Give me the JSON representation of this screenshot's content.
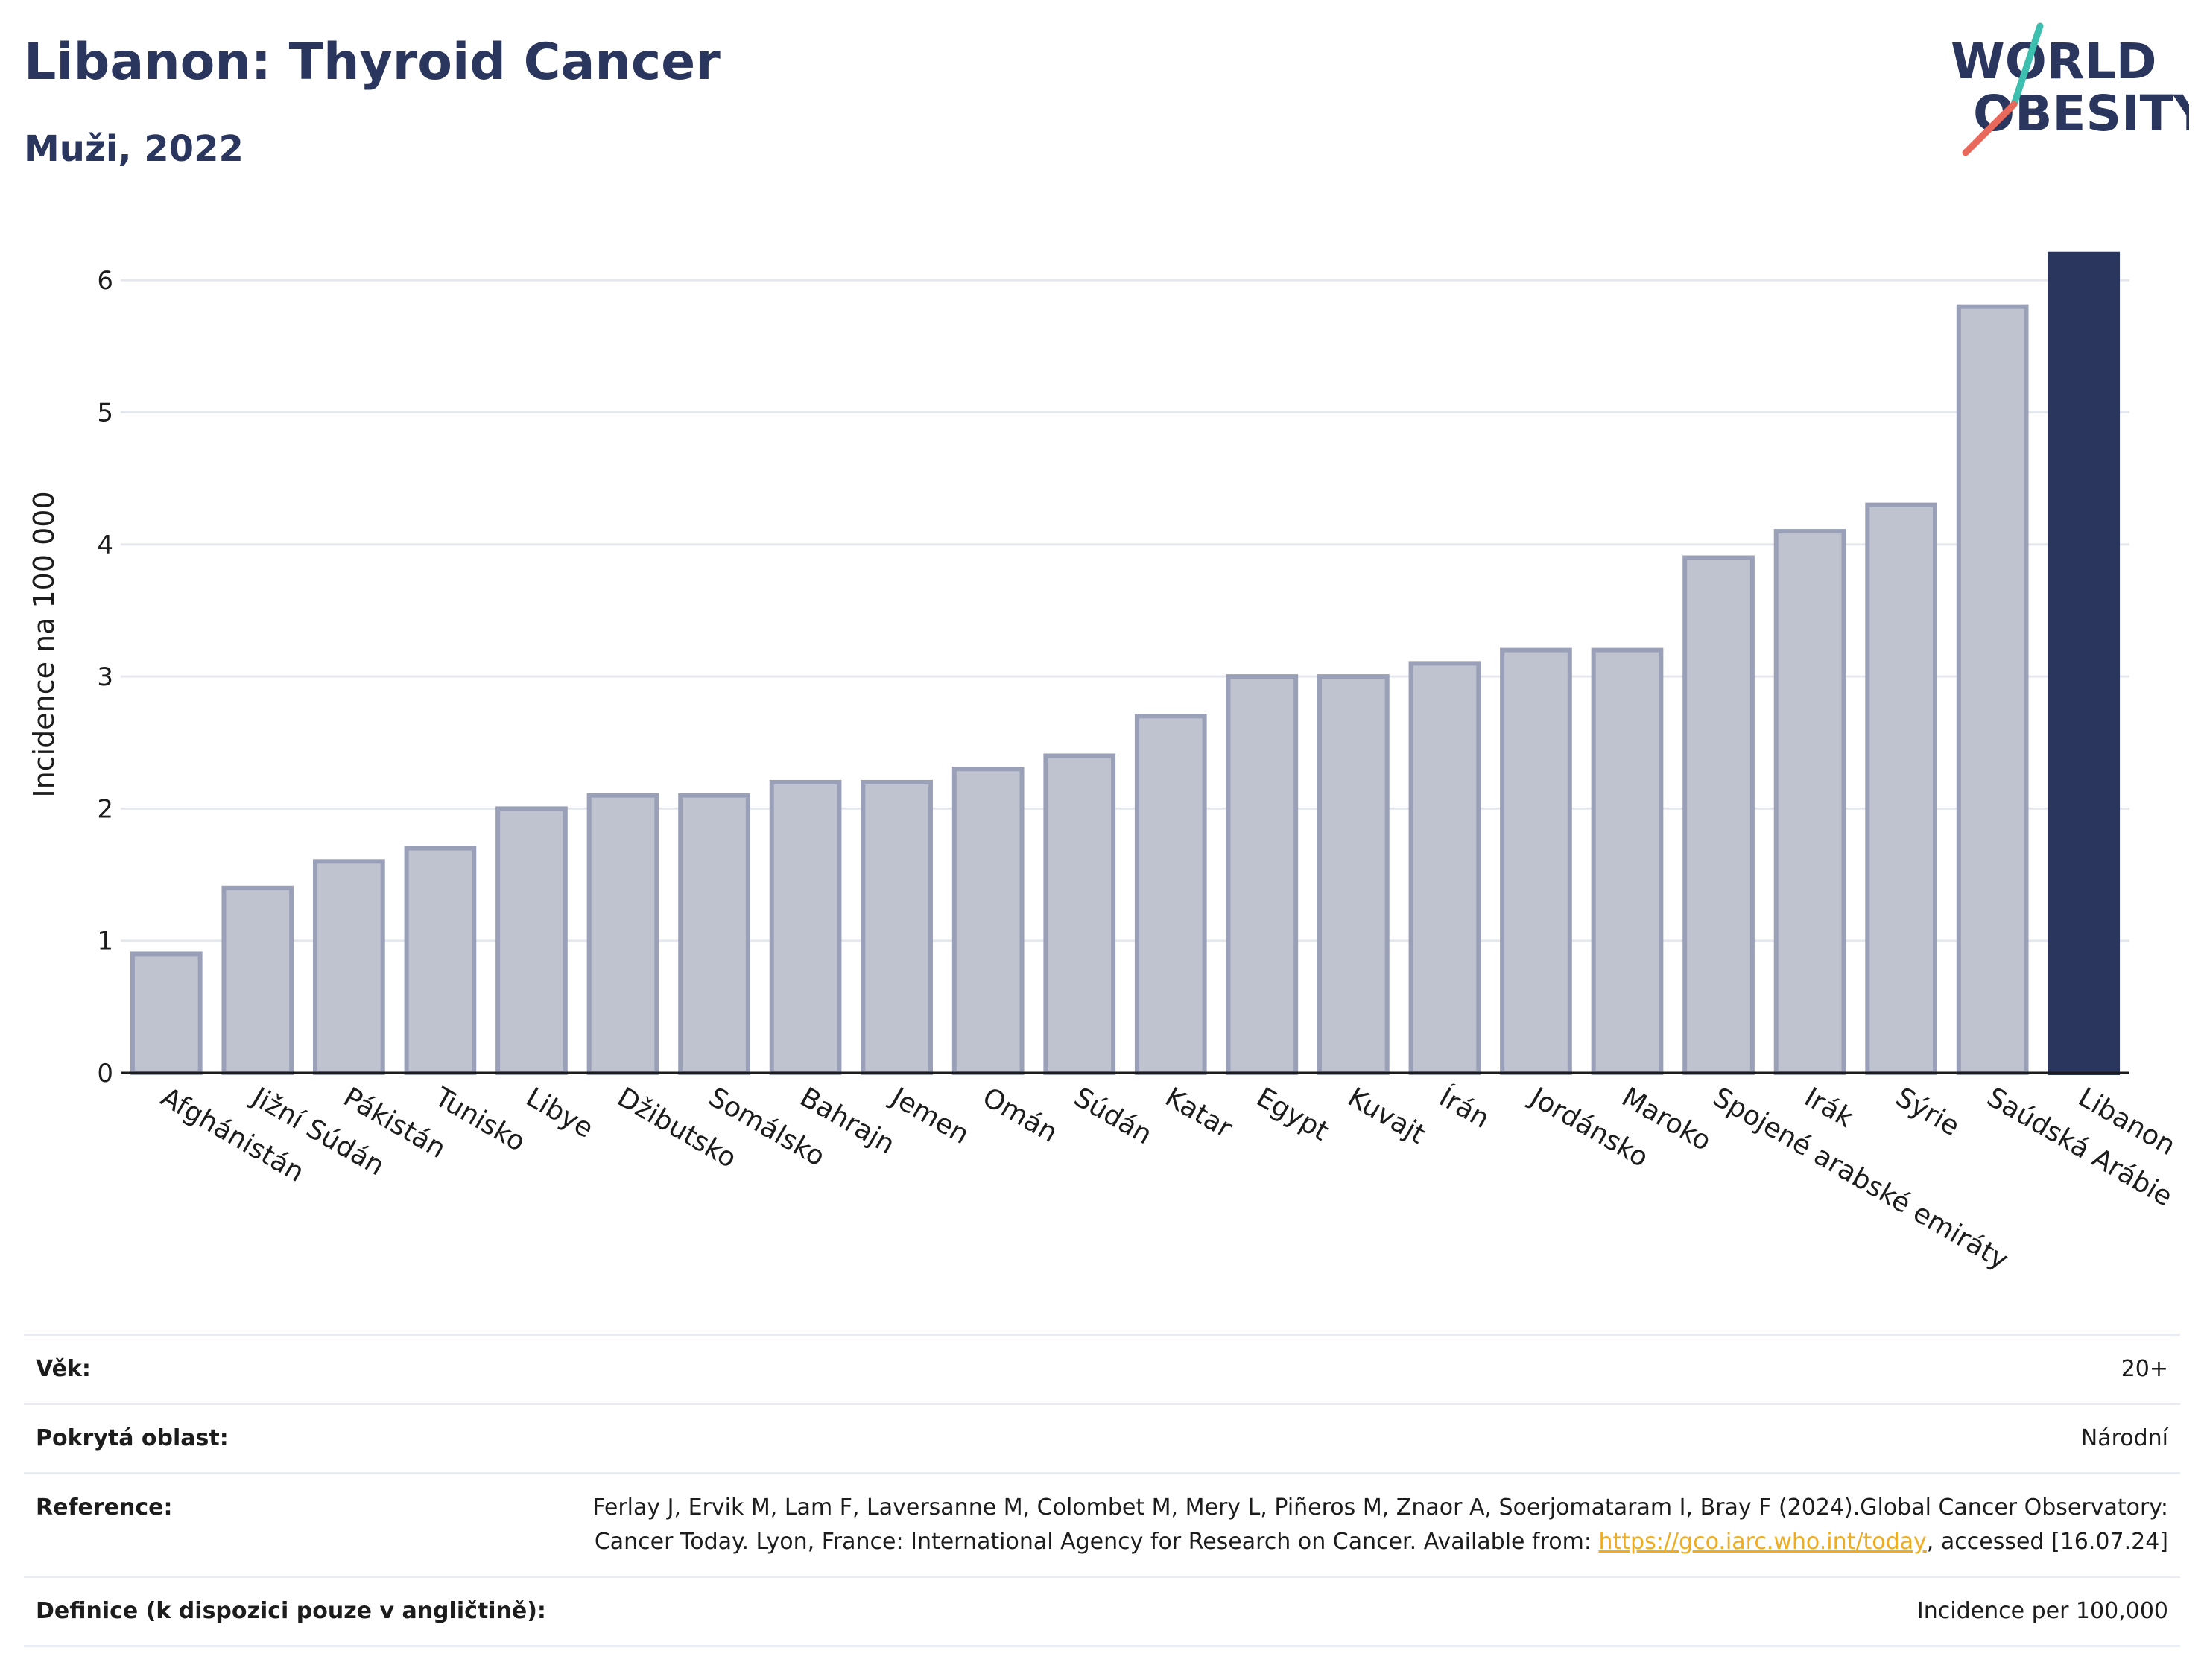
{
  "header": {
    "title": "Libanon: Thyroid Cancer",
    "subtitle": "Muži, 2022"
  },
  "logo": {
    "line1": "WORLD",
    "line2": "OBESITY",
    "accent_colors": [
      "#3cbfae",
      "#e8685b"
    ]
  },
  "colors": {
    "highlight": "#2b365f",
    "bar_fill": "#bfc3d0",
    "bar_edge": "#9aa0b8",
    "text": "#1c1c1c",
    "title": "#2b365f"
  },
  "chart_data": {
    "type": "bar",
    "ylabel": "Incidence na 100 000",
    "xlabel": "",
    "ylim": [
      0,
      6.3
    ],
    "yticks": [
      0,
      1,
      2,
      3,
      4,
      5,
      6
    ],
    "grid": true,
    "highlight": "Libanon",
    "categories": [
      "Afghánistán",
      "Jižní Súdán",
      "Pákistán",
      "Tunisko",
      "Libye",
      "Džibutsko",
      "Somálsko",
      "Bahrajn",
      "Jemen",
      "Omán",
      "Súdán",
      "Katar",
      "Egypt",
      "Kuvajt",
      "Írán",
      "Jordánsko",
      "Maroko",
      "Spojené arabské emiráty",
      "Irák",
      "Sýrie",
      "Saúdská Arábie",
      "Libanon"
    ],
    "values": [
      0.9,
      1.4,
      1.6,
      1.7,
      2.0,
      2.1,
      2.1,
      2.2,
      2.2,
      2.3,
      2.4,
      2.7,
      3.0,
      3.0,
      3.1,
      3.2,
      3.2,
      3.9,
      4.1,
      4.3,
      5.8,
      6.2
    ]
  },
  "info": {
    "age_label": "Věk:",
    "age_value": "20+",
    "coverage_label": "Pokrytá oblast:",
    "coverage_value": "Národní",
    "reference_label": "Reference:",
    "reference_text_1": "Ferlay J, Ervik M, Lam F, Laversanne M, Colombet M, Mery L, Piñeros M, Znaor A, Soerjomataram I, Bray F (2024).Global Cancer Observatory: Cancer Today. Lyon, France: International Agency for Research on Cancer. Available from: ",
    "reference_link": "https://gco.iarc.who.int/today",
    "reference_text_2": ", accessed [16.07.24]",
    "definition_label": "Definice (k dispozici pouze v angličtině):",
    "definition_value": "Incidence per 100,000"
  }
}
